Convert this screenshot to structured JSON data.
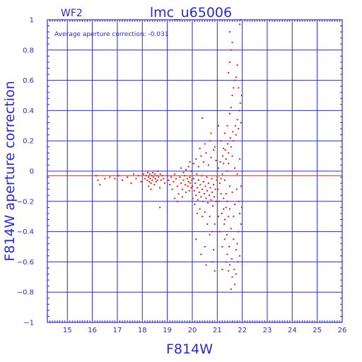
{
  "chart_data": {
    "type": "scatter",
    "title": "lmc_u65006",
    "subtitle": "WF2",
    "annotation": "Average aperture correction:  -0.031",
    "xlabel": "F814W",
    "ylabel": "F814W aperture correction",
    "xlim": [
      14.2,
      26
    ],
    "ylim": [
      -1,
      1
    ],
    "x_ticks": [
      15,
      16,
      17,
      18,
      19,
      20,
      21,
      22,
      23,
      24,
      25,
      26
    ],
    "y_ticks": [
      -1,
      -0.8,
      -0.6,
      -0.4,
      -0.2,
      0,
      0.2,
      0.4,
      0.6,
      0.8,
      1
    ],
    "y_tick_labels": [
      "−1",
      "−0.8",
      "−0.6",
      "−0.4",
      "−0.2",
      "0",
      "0.2",
      "0.4",
      "0.6",
      "0.8",
      "1"
    ],
    "grid": true,
    "average_line": -0.031,
    "zero_line": 0,
    "colors": {
      "axes": "#2a2acb",
      "points": "#e31a1c",
      "average_line": "#c0392b"
    },
    "points": [
      [
        16.15,
        -0.03
      ],
      [
        16.22,
        -0.06
      ],
      [
        16.3,
        -0.09
      ],
      [
        16.5,
        -0.05
      ],
      [
        16.7,
        -0.04
      ],
      [
        16.9,
        -0.05
      ],
      [
        17.05,
        -0.03
      ],
      [
        17.2,
        -0.06
      ],
      [
        17.4,
        -0.04
      ],
      [
        17.55,
        -0.08
      ],
      [
        17.65,
        -0.02
      ],
      [
        17.75,
        -0.05
      ],
      [
        17.85,
        -0.03
      ],
      [
        17.95,
        -0.07
      ],
      [
        18.05,
        -0.02
      ],
      [
        18.1,
        -0.05
      ],
      [
        18.15,
        -0.03
      ],
      [
        18.2,
        -0.06
      ],
      [
        18.22,
        -0.01
      ],
      [
        18.25,
        -0.04
      ],
      [
        18.28,
        -0.07
      ],
      [
        18.3,
        -0.02
      ],
      [
        18.32,
        -0.05
      ],
      [
        18.35,
        -0.08
      ],
      [
        18.38,
        -0.03
      ],
      [
        18.4,
        -0.06
      ],
      [
        18.42,
        -0.01
      ],
      [
        18.45,
        -0.04
      ],
      [
        18.48,
        -0.09
      ],
      [
        18.5,
        -0.02
      ],
      [
        18.52,
        -0.05
      ],
      [
        18.55,
        -0.07
      ],
      [
        18.58,
        -0.03
      ],
      [
        18.6,
        -0.06
      ],
      [
        18.62,
        0.0
      ],
      [
        18.65,
        -0.04
      ],
      [
        18.7,
        -0.11
      ],
      [
        18.72,
        -0.02
      ],
      [
        18.75,
        -0.06
      ],
      [
        18.8,
        -0.03
      ],
      [
        18.85,
        -0.05
      ],
      [
        18.9,
        -0.08
      ],
      [
        18.7,
        -0.24
      ],
      [
        18.35,
        -0.12
      ],
      [
        18.25,
        -0.1
      ],
      [
        19.0,
        -0.03
      ],
      [
        19.05,
        -0.06
      ],
      [
        19.1,
        -0.09
      ],
      [
        19.15,
        -0.04
      ],
      [
        19.2,
        -0.12
      ],
      [
        19.25,
        -0.07
      ],
      [
        19.3,
        -0.02
      ],
      [
        19.35,
        -0.05
      ],
      [
        19.4,
        -0.1
      ],
      [
        19.45,
        -0.15
      ],
      [
        19.5,
        -0.04
      ],
      [
        19.55,
        -0.08
      ],
      [
        19.6,
        -0.12
      ],
      [
        19.65,
        -0.06
      ],
      [
        19.7,
        -0.03
      ],
      [
        19.72,
        -0.09
      ],
      [
        19.75,
        -0.14
      ],
      [
        19.8,
        -0.05
      ],
      [
        19.82,
        -0.1
      ],
      [
        19.85,
        -0.07
      ],
      [
        19.88,
        -0.13
      ],
      [
        19.9,
        -0.04
      ],
      [
        19.92,
        -0.08
      ],
      [
        19.95,
        -0.11
      ],
      [
        19.98,
        -0.06
      ],
      [
        19.3,
        -0.18
      ],
      [
        19.4,
        -0.2
      ],
      [
        19.6,
        -0.17
      ],
      [
        19.55,
        0.02
      ],
      [
        19.65,
        -0.01
      ],
      [
        19.75,
        0.01
      ],
      [
        19.85,
        0.03
      ],
      [
        19.9,
        0.06
      ],
      [
        19.95,
        0.0
      ],
      [
        20.0,
        -0.1
      ],
      [
        20.02,
        -0.18
      ],
      [
        20.05,
        -0.05
      ],
      [
        20.08,
        -0.13
      ],
      [
        20.1,
        -0.22
      ],
      [
        20.12,
        -0.08
      ],
      [
        20.15,
        -0.16
      ],
      [
        20.18,
        -0.02
      ],
      [
        20.2,
        -0.11
      ],
      [
        20.22,
        -0.19
      ],
      [
        20.25,
        -0.06
      ],
      [
        20.28,
        -0.14
      ],
      [
        20.3,
        -0.25
      ],
      [
        20.32,
        -0.09
      ],
      [
        20.35,
        -0.17
      ],
      [
        20.38,
        -0.03
      ],
      [
        20.4,
        -0.12
      ],
      [
        20.42,
        -0.2
      ],
      [
        20.45,
        -0.07
      ],
      [
        20.48,
        -0.15
      ],
      [
        20.5,
        -0.27
      ],
      [
        20.52,
        -0.1
      ],
      [
        20.55,
        -0.18
      ],
      [
        20.58,
        -0.04
      ],
      [
        20.6,
        -0.13
      ],
      [
        20.62,
        -0.21
      ],
      [
        20.65,
        -0.08
      ],
      [
        20.68,
        -0.16
      ],
      [
        20.7,
        -0.3
      ],
      [
        20.72,
        -0.11
      ],
      [
        20.75,
        -0.19
      ],
      [
        20.78,
        -0.05
      ],
      [
        20.8,
        -0.14
      ],
      [
        20.82,
        -0.23
      ],
      [
        20.85,
        -0.09
      ],
      [
        20.88,
        -0.17
      ],
      [
        20.9,
        -0.35
      ],
      [
        20.92,
        -0.12
      ],
      [
        20.95,
        -0.2
      ],
      [
        20.98,
        -0.06
      ],
      [
        20.05,
        0.05
      ],
      [
        20.15,
        0.08
      ],
      [
        20.25,
        0.03
      ],
      [
        20.35,
        0.1
      ],
      [
        20.45,
        0.06
      ],
      [
        20.55,
        0.12
      ],
      [
        20.65,
        0.04
      ],
      [
        20.75,
        0.09
      ],
      [
        20.85,
        0.14
      ],
      [
        20.95,
        0.07
      ],
      [
        20.3,
        0.15
      ],
      [
        20.5,
        0.18
      ],
      [
        20.7,
        0.2
      ],
      [
        20.9,
        0.16
      ],
      [
        20.4,
        -0.3
      ],
      [
        20.6,
        -0.35
      ],
      [
        20.8,
        -0.4
      ],
      [
        20.2,
        -0.28
      ],
      [
        20.15,
        -0.45
      ],
      [
        20.5,
        -0.5
      ],
      [
        20.7,
        -0.42
      ],
      [
        20.35,
        -0.55
      ],
      [
        20.85,
        -0.52
      ],
      [
        20.55,
        -0.62
      ],
      [
        20.8,
        -0.6
      ],
      [
        20.9,
        -0.66
      ],
      [
        20.4,
        0.35
      ],
      [
        20.75,
        0.25
      ],
      [
        21.0,
        -0.04
      ],
      [
        21.02,
        -0.12
      ],
      [
        21.05,
        0.02
      ],
      [
        21.08,
        -0.2
      ],
      [
        21.1,
        -0.08
      ],
      [
        21.12,
        0.06
      ],
      [
        21.15,
        -0.15
      ],
      [
        21.18,
        -0.28
      ],
      [
        21.2,
        -0.02
      ],
      [
        21.22,
        0.1
      ],
      [
        21.25,
        -0.18
      ],
      [
        21.28,
        -0.35
      ],
      [
        21.3,
        -0.06
      ],
      [
        21.32,
        0.14
      ],
      [
        21.35,
        -0.24
      ],
      [
        21.38,
        -0.42
      ],
      [
        21.4,
        0.0
      ],
      [
        21.42,
        0.18
      ],
      [
        21.45,
        -0.3
      ],
      [
        21.48,
        -0.5
      ],
      [
        21.5,
        -0.1
      ],
      [
        21.52,
        0.22
      ],
      [
        21.55,
        -0.38
      ],
      [
        21.58,
        -0.58
      ],
      [
        21.6,
        -0.14
      ],
      [
        21.62,
        0.26
      ],
      [
        21.65,
        -0.45
      ],
      [
        21.68,
        -0.65
      ],
      [
        21.7,
        -0.22
      ],
      [
        21.72,
        0.3
      ],
      [
        21.75,
        -0.52
      ],
      [
        21.78,
        -0.12
      ],
      [
        21.8,
        0.34
      ],
      [
        21.82,
        -0.6
      ],
      [
        21.85,
        -0.2
      ],
      [
        21.88,
        0.4
      ],
      [
        21.9,
        -0.28
      ],
      [
        21.92,
        0.45
      ],
      [
        21.95,
        -0.35
      ],
      [
        21.98,
        0.5
      ],
      [
        21.05,
        -0.3
      ],
      [
        21.1,
        -0.4
      ],
      [
        21.15,
        -0.05
      ],
      [
        21.2,
        -0.5
      ],
      [
        21.25,
        0.05
      ],
      [
        21.3,
        -0.45
      ],
      [
        21.35,
        0.08
      ],
      [
        21.4,
        -0.55
      ],
      [
        21.45,
        0.12
      ],
      [
        21.5,
        -0.62
      ],
      [
        21.55,
        0.16
      ],
      [
        21.6,
        -0.7
      ],
      [
        21.65,
        0.2
      ],
      [
        21.7,
        -0.75
      ],
      [
        21.75,
        0.24
      ],
      [
        21.8,
        -0.48
      ],
      [
        21.85,
        0.28
      ],
      [
        21.9,
        -0.56
      ],
      [
        21.95,
        0.32
      ],
      [
        21.3,
        0.25
      ],
      [
        21.4,
        0.3
      ],
      [
        21.5,
        0.38
      ],
      [
        21.55,
        0.42
      ],
      [
        21.6,
        0.5
      ],
      [
        21.65,
        0.55
      ],
      [
        21.7,
        0.6
      ],
      [
        21.75,
        0.62
      ],
      [
        21.8,
        0.7
      ],
      [
        21.45,
        0.65
      ],
      [
        21.5,
        0.72
      ],
      [
        21.55,
        0.8
      ],
      [
        21.6,
        0.85
      ],
      [
        21.5,
        0.92
      ],
      [
        21.85,
        0.55
      ],
      [
        21.9,
        0.97
      ],
      [
        21.92,
        1.0
      ],
      [
        21.2,
        -0.65
      ],
      [
        21.25,
        -0.25
      ],
      [
        21.35,
        -0.6
      ],
      [
        21.45,
        -0.66
      ],
      [
        21.55,
        -0.78
      ],
      [
        21.75,
        -0.68
      ],
      [
        21.65,
        -0.3
      ],
      [
        21.85,
        -0.4
      ],
      [
        21.95,
        -0.1
      ],
      [
        21.98,
        -0.24
      ],
      [
        21.35,
        -0.15
      ],
      [
        21.15,
        0.2
      ],
      [
        21.05,
        0.3
      ],
      [
        21.25,
        0.15
      ],
      [
        21.45,
        0.05
      ],
      [
        21.6,
        0.1
      ],
      [
        21.7,
        0.02
      ],
      [
        21.8,
        -0.02
      ],
      [
        21.9,
        0.08
      ],
      [
        21.4,
        -0.2
      ],
      [
        21.5,
        -0.25
      ],
      [
        21.3,
        -0.32
      ]
    ]
  }
}
